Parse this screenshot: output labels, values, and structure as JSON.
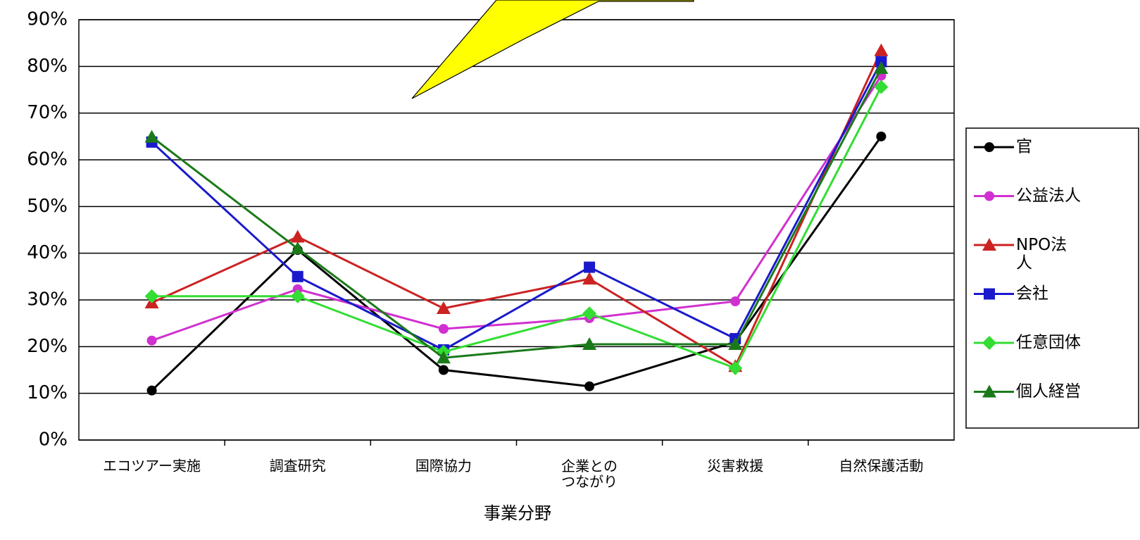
{
  "chart_data": {
    "type": "line",
    "x_label": "事業分野",
    "categories": [
      "エコツアー実施",
      "調査研究",
      "国際協力",
      "企業との\nつながり",
      "災害救援",
      "自然保護活動"
    ],
    "ylim": [
      0,
      90
    ],
    "yticks": [
      {
        "value": 0,
        "label": "0%"
      },
      {
        "value": 10,
        "label": "10%"
      },
      {
        "value": 20,
        "label": "20%"
      },
      {
        "value": 30,
        "label": "30%"
      },
      {
        "value": 40,
        "label": "40%"
      },
      {
        "value": 50,
        "label": "50%"
      },
      {
        "value": 60,
        "label": "60%"
      },
      {
        "value": 70,
        "label": "70%"
      },
      {
        "value": 80,
        "label": "80%"
      },
      {
        "value": 90,
        "label": "90%"
      }
    ],
    "grid": true,
    "legend": "right",
    "series": [
      {
        "name": "官",
        "color": "#000000",
        "marker": "circle",
        "values": [
          10.6,
          40.7,
          15,
          11.5,
          21,
          65
        ]
      },
      {
        "name": "公益法人",
        "color": "#d030d0",
        "marker": "circle",
        "values": [
          21.3,
          32.3,
          23.8,
          26.1,
          29.7,
          78
        ]
      },
      {
        "name": "NPO法\n人",
        "color": "#cc2222",
        "marker": "triangle",
        "values": [
          29.4,
          43.5,
          28.2,
          34.5,
          15.8,
          83.4
        ]
      },
      {
        "name": "会社",
        "color": "#1a1acc",
        "marker": "square",
        "values": [
          63.8,
          35,
          19.3,
          37,
          21.7,
          81
        ]
      },
      {
        "name": "任意団体",
        "color": "#33dd33",
        "marker": "diamond",
        "values": [
          30.8,
          30.8,
          18.9,
          27.1,
          15.4,
          75.6
        ]
      },
      {
        "name": "個人経営",
        "color": "#1a7a1a",
        "marker": "triangle",
        "values": [
          64.9,
          41,
          17.6,
          20.5,
          20.5,
          79.6
        ]
      }
    ]
  }
}
